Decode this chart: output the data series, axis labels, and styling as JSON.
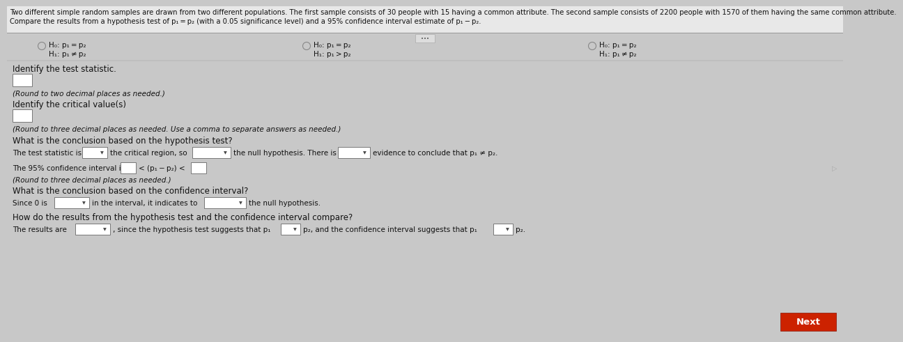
{
  "background_color": "#c8c8c8",
  "content_bg": "#d8d8d8",
  "title_line1": "Two different simple random samples are drawn from two different populations. The first sample consists of 30 people with 15 having a common attribute. The second sample consists of 2200 people with 1570 of them having the same common attribute.",
  "title_line2": "Compare the results from a hypothesis test of p₁ = p₂ (with a 0.05 significance level) and a 95% confidence interval estimate of p₁ − p₂.",
  "col1_h0": "H₀: p₁ = p₂",
  "col1_h1": "H₁: p₁ ≠ p₂",
  "col2_h0": "H₀: p₁ = p₂",
  "col2_h1": "H₁: p₁ > p₂",
  "col3_h0": "H₀: p₁ = p₂",
  "col3_h1": "H₁: p₁ ≠ p₂",
  "label_test_stat": "Identify the test statistic.",
  "label_round2": "(Round to two decimal places as needed.)",
  "label_critical": "Identify the critical value(s)",
  "label_round3": "(Round to three decimal places as needed. Use a comma to separate answers as needed.)",
  "label_conclusion_hyp": "What is the conclusion based on the hypothesis test?",
  "label_ci_prefix": "The 95% confidence interval is",
  "label_ci_middle": "< (p₁ − p₂) <",
  "label_round3b": "(Round to three decimal places as needed.)",
  "label_conclusion_ci": "What is the conclusion based on the confidence interval?",
  "label_compare": "How do the results from the hypothesis test and the confidence interval compare?",
  "next_label": "Next",
  "text_color": "#111111",
  "white": "#ffffff",
  "fs": 8.5,
  "fs_small": 7.5,
  "sep_color": "#999999",
  "box_edge": "#777777",
  "radio_color": "#888888",
  "next_bg": "#cc2200",
  "arrow_color": "#aaaaaa"
}
